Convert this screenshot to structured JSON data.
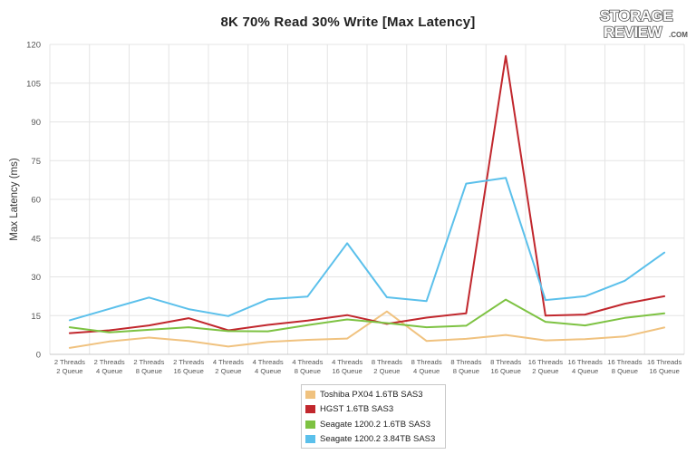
{
  "brand": {
    "logo_line1": "STORAGE",
    "logo_line2": "REVIEW",
    "logo_suffix": ".COM"
  },
  "chart_data": {
    "type": "line",
    "title": "8K 70% Read 30% Write [Max Latency]",
    "xlabel": "",
    "ylabel": "Max Latency (ms)",
    "ylim": [
      0,
      120
    ],
    "yticks": [
      0,
      15,
      30,
      45,
      60,
      75,
      90,
      105,
      120
    ],
    "grid": true,
    "legend_position": "bottom-center",
    "categories": [
      [
        "2 Threads",
        "2 Queue"
      ],
      [
        "2 Threads",
        "4 Queue"
      ],
      [
        "2 Threads",
        "8 Queue"
      ],
      [
        "2 Threads",
        "16 Queue"
      ],
      [
        "4 Threads",
        "2 Queue"
      ],
      [
        "4 Threads",
        "4 Queue"
      ],
      [
        "4 Threads",
        "8 Queue"
      ],
      [
        "4 Threads",
        "16 Queue"
      ],
      [
        "8 Threads",
        "2 Queue"
      ],
      [
        "8 Threads",
        "4 Queue"
      ],
      [
        "8 Threads",
        "8 Queue"
      ],
      [
        "8 Threads",
        "16 Queue"
      ],
      [
        "16 Threads",
        "2 Queue"
      ],
      [
        "16 Threads",
        "4 Queue"
      ],
      [
        "16 Threads",
        "8 Queue"
      ],
      [
        "16 Threads",
        "16 Queue"
      ]
    ],
    "series": [
      {
        "name": "Toshiba PX04 1.6TB SAS3",
        "color": "#f0c27f",
        "values": [
          2.5,
          5.0,
          6.5,
          5.2,
          3.0,
          4.8,
          5.6,
          6.1,
          16.6,
          5.2,
          6.0,
          7.5,
          5.4,
          5.9,
          6.9,
          10.4
        ]
      },
      {
        "name": "HGST 1.6TB SAS3",
        "color": "#c1272d",
        "values": [
          8.2,
          9.3,
          11.2,
          14.0,
          9.3,
          11.4,
          13.1,
          15.2,
          11.8,
          14.2,
          15.9,
          115.5,
          15.0,
          15.4,
          19.6,
          22.5
        ]
      },
      {
        "name": "Seagate 1200.2 1.6TB SAS3",
        "color": "#7dc242",
        "values": [
          10.5,
          8.5,
          9.5,
          10.5,
          9.0,
          8.9,
          11.3,
          13.5,
          12.1,
          10.5,
          11.1,
          21.2,
          12.6,
          11.2,
          14.1,
          15.9
        ]
      },
      {
        "name": "Seagate 1200.2 3.84TB SAS3",
        "color": "#5bc0eb",
        "values": [
          13.2,
          17.6,
          22.0,
          17.5,
          14.8,
          21.3,
          22.4,
          43.0,
          22.1,
          20.6,
          66.1,
          68.3,
          21.0,
          22.5,
          28.5,
          39.4
        ]
      }
    ]
  }
}
